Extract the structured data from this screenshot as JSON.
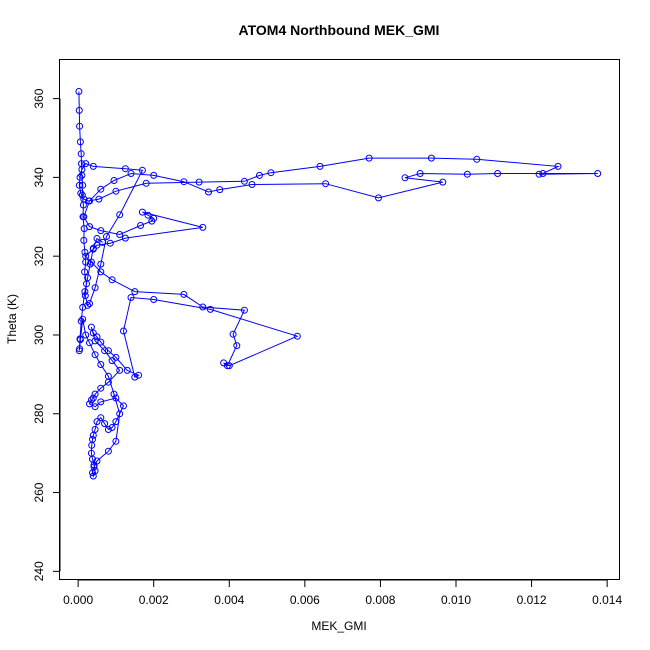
{
  "chart_data": {
    "type": "line",
    "title": "ATOM4 Northbound MEK_GMI",
    "xlabel": "MEK_GMI",
    "ylabel": "Theta (K)",
    "xlim": [
      -0.00048,
      0.01434
    ],
    "ylim": [
      237.8,
      369.8
    ],
    "xticks": [
      0.0,
      0.002,
      0.004,
      0.006,
      0.008,
      0.01,
      0.012,
      0.014
    ],
    "xtick_labels": [
      "0.000",
      "0.002",
      "0.004",
      "0.006",
      "0.008",
      "0.010",
      "0.012",
      "0.014"
    ],
    "yticks": [
      240,
      260,
      280,
      300,
      320,
      340,
      360
    ],
    "ytick_labels": [
      "240",
      "260",
      "280",
      "300",
      "320",
      "340",
      "360"
    ],
    "grid": false,
    "legend": "none",
    "marker": "open-circle",
    "color": "#0000ff",
    "series": [
      {
        "x": [
          2e-05,
          3e-05,
          4e-05,
          6e-05,
          8e-05,
          9e-05,
          0.0001,
          0.00012,
          0.00011,
          0.00014,
          0.00013,
          0.00016,
          0.00015,
          0.00018,
          0.0002,
          0.00017,
          0.00022,
          0.00019,
          0.00025,
          0.0003,
          0.00045,
          0.0006,
          0.00075,
          0.0011,
          0.0017,
          0.00125,
          0.0004,
          0.0002,
          0.0001,
          5e-05,
          3e-05,
          7e-05,
          0.00015,
          0.00028,
          0.00055,
          0.001,
          0.0018,
          0.0032,
          0.0044,
          0.0048,
          0.0051,
          0.0064,
          0.0077,
          0.00935,
          0.01055,
          0.0127,
          0.0123,
          0.0122,
          0.01375,
          0.0111,
          0.0103,
          0.00905,
          0.00865,
          0.00965,
          0.00795,
          0.00655,
          0.0046,
          0.00375,
          0.00345,
          0.0028,
          0.002,
          0.0014,
          0.00095,
          0.0006,
          0.0003,
          0.00015,
          0.0003,
          0.0006,
          0.0011,
          0.00165,
          0.00195,
          0.002,
          0.00185,
          0.0017,
          0.0033,
          0.00125,
          0.00085,
          0.0005,
          0.0004,
          0.0002,
          0.00035,
          0.0006,
          0.0009,
          0.0015,
          0.0028,
          0.0033,
          0.0044,
          0.0041,
          0.0042,
          0.00395,
          0.00385,
          0.004,
          0.0058,
          0.0035,
          0.002,
          0.0014,
          0.0012,
          0.0015,
          0.0016,
          0.0013,
          0.001,
          0.0008,
          0.0006,
          0.0005,
          0.0004,
          0.00035,
          0.00045,
          0.0007,
          0.0009,
          0.0011,
          0.0008,
          0.0006,
          0.00045,
          0.0004,
          0.00035,
          0.0003,
          0.00045,
          0.0006,
          0.001,
          0.0012,
          0.001,
          0.0009,
          0.0008,
          0.0007,
          0.0006,
          0.0005,
          0.00045,
          0.0004,
          0.00038,
          0.00036,
          0.00035,
          0.00038,
          0.00042,
          0.00045,
          0.0004,
          0.00038,
          0.00042,
          0.0005,
          0.0008,
          0.001,
          0.0011,
          0.00095,
          0.0008,
          0.0006,
          0.00045,
          0.0003,
          0.0002,
          0.00012,
          6e-05,
          4e-05,
          3e-05,
          5e-05,
          8e-05,
          0.00012,
          0.00018,
          0.00025,
          0.00032,
          0.0004,
          0.0005,
          0.00065
        ],
        "y": [
          361.8,
          357.0,
          353.0,
          349.0,
          346.0,
          343.5,
          340.5,
          338.0,
          335.5,
          333.0,
          330.0,
          327.0,
          324.0,
          321.0,
          318.5,
          316.0,
          313.0,
          310.0,
          307.5,
          308.0,
          312.0,
          318.0,
          325.0,
          330.5,
          341.8,
          342.2,
          342.8,
          343.5,
          342.0,
          340.0,
          338.0,
          336.0,
          334.5,
          334.0,
          334.5,
          336.5,
          338.5,
          338.8,
          339.0,
          340.5,
          341.2,
          342.8,
          344.9,
          344.9,
          344.6,
          342.8,
          341.0,
          340.8,
          341.0,
          341.0,
          340.8,
          341.0,
          339.9,
          338.8,
          334.8,
          338.4,
          338.2,
          336.9,
          336.3,
          338.9,
          340.5,
          341.0,
          339.2,
          337.0,
          334.0,
          330.0,
          327.5,
          326.5,
          325.5,
          327.8,
          328.9,
          329.6,
          330.4,
          331.2,
          327.3,
          324.6,
          323.3,
          322.8,
          321.8,
          320.0,
          318.5,
          316.0,
          314.0,
          311.0,
          310.3,
          307.1,
          306.3,
          300.2,
          297.3,
          292.2,
          292.9,
          292.2,
          299.7,
          306.5,
          309.0,
          309.5,
          301.0,
          289.3,
          289.8,
          291.0,
          294.3,
          296.0,
          298.2,
          299.5,
          300.5,
          302.0,
          298.5,
          296.0,
          293.5,
          291.0,
          288.0,
          286.5,
          285.0,
          284.0,
          283.5,
          282.5,
          281.8,
          283.0,
          284.0,
          282.0,
          278.0,
          276.5,
          276.0,
          277.5,
          279.0,
          278.0,
          276.0,
          274.5,
          273.5,
          272.0,
          270.0,
          268.5,
          267.0,
          265.5,
          264.2,
          265.0,
          266.5,
          268.0,
          270.5,
          273.0,
          280.0,
          285.0,
          289.5,
          292.5,
          295.0,
          298.0,
          300.0,
          304.0,
          298.8,
          296.5,
          296.0,
          299.0,
          303.5,
          307.0,
          311.0,
          314.5,
          318.0,
          322.0,
          324.5,
          323.5
        ]
      }
    ]
  }
}
